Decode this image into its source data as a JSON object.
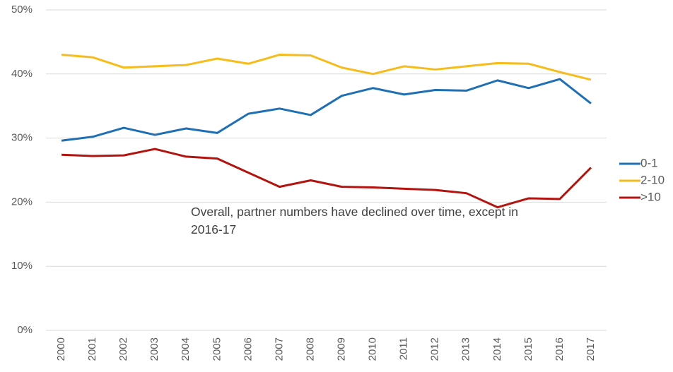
{
  "chart_data": {
    "type": "line",
    "annotation": "Overall, partner numbers have declined over time, except in 2016-17",
    "categories": [
      "2000",
      "2001",
      "2002",
      "2003",
      "2004",
      "2005",
      "2006",
      "2007",
      "2008",
      "2009",
      "2010",
      "2011",
      "2012",
      "2013",
      "2014",
      "2015",
      "2016",
      "2017"
    ],
    "series": [
      {
        "name": "0-1",
        "color": "#1f6fb4",
        "values": [
          29.6,
          30.2,
          31.6,
          30.5,
          31.5,
          30.8,
          33.8,
          34.6,
          33.6,
          36.6,
          37.8,
          36.8,
          37.5,
          37.4,
          39.0,
          37.8,
          39.2,
          35.4
        ]
      },
      {
        "name": "2-10",
        "color": "#f5bc1b",
        "values": [
          43.0,
          42.6,
          41.0,
          41.2,
          41.4,
          42.4,
          41.6,
          43.0,
          42.9,
          41.0,
          40.0,
          41.2,
          40.7,
          41.2,
          41.7,
          41.6,
          40.3,
          39.1
        ]
      },
      {
        "name": ">10",
        "color": "#b3140f",
        "values": [
          27.4,
          27.2,
          27.3,
          28.3,
          27.1,
          26.8,
          24.6,
          22.4,
          23.4,
          22.4,
          22.3,
          22.1,
          21.9,
          21.4,
          19.2,
          20.6,
          20.5,
          25.4
        ]
      }
    ],
    "ylim": [
      0,
      50
    ],
    "yticks": [
      {
        "value": 0,
        "label": "0%"
      },
      {
        "value": 10,
        "label": "10%"
      },
      {
        "value": 20,
        "label": "20%"
      },
      {
        "value": 30,
        "label": "30%"
      },
      {
        "value": 40,
        "label": "40%"
      },
      {
        "value": 50,
        "label": "50%"
      }
    ],
    "grid": true,
    "legend": "right"
  }
}
